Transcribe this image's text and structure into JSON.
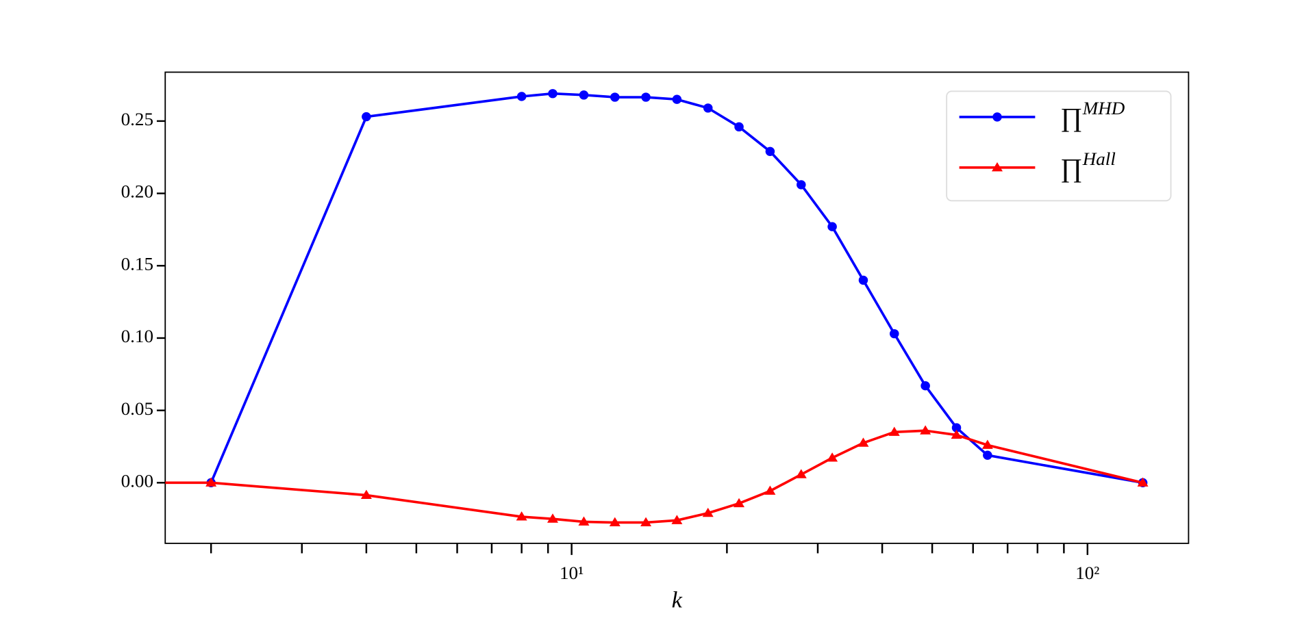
{
  "chart_data": {
    "type": "line",
    "x_label": "k",
    "log_x": true,
    "x": [
      1,
      2,
      4,
      8,
      9.19,
      10.56,
      12.13,
      13.93,
      16,
      18.38,
      21.11,
      24.25,
      27.86,
      32,
      36.76,
      42.22,
      48.5,
      55.72,
      64,
      128
    ],
    "series": [
      {
        "name": "∏MHD",
        "color": "#0000ff",
        "marker": "circle",
        "values": [
          null,
          0.0,
          0.253,
          0.267,
          0.269,
          0.268,
          0.2665,
          0.2665,
          0.265,
          0.259,
          0.246,
          0.229,
          0.206,
          0.177,
          0.14,
          0.103,
          0.067,
          0.038,
          0.019,
          0.0
        ]
      },
      {
        "name": "∏Hall",
        "color": "#ff0000",
        "marker": "triangle",
        "values": [
          0.0,
          0.0,
          -0.0086,
          -0.0235,
          -0.025,
          -0.027,
          -0.0275,
          -0.0275,
          -0.026,
          -0.021,
          -0.0143,
          -0.0057,
          0.0057,
          0.0172,
          0.0275,
          0.035,
          0.036,
          0.033,
          0.026,
          0.0
        ]
      }
    ],
    "xlim": [
      1.63,
      157
    ],
    "xticks": [
      {
        "value": 10,
        "label": "10¹"
      },
      {
        "value": 100,
        "label": "10²"
      }
    ],
    "xminor_ticks": [
      2,
      3,
      4,
      5,
      6,
      7,
      8,
      9,
      20,
      30,
      40,
      50,
      60,
      70,
      80,
      90
    ],
    "ylim": [
      -0.0419,
      0.2838
    ],
    "yticks": [
      {
        "value": 0,
        "label": "0.00"
      },
      {
        "value": 0.05,
        "label": "0.05"
      },
      {
        "value": 0.1,
        "label": "0.10"
      },
      {
        "value": 0.15,
        "label": "0.15"
      },
      {
        "value": 0.2,
        "label": "0.20"
      },
      {
        "value": 0.25,
        "label": "0.25"
      }
    ],
    "legend": "upper right",
    "grid": false
  }
}
